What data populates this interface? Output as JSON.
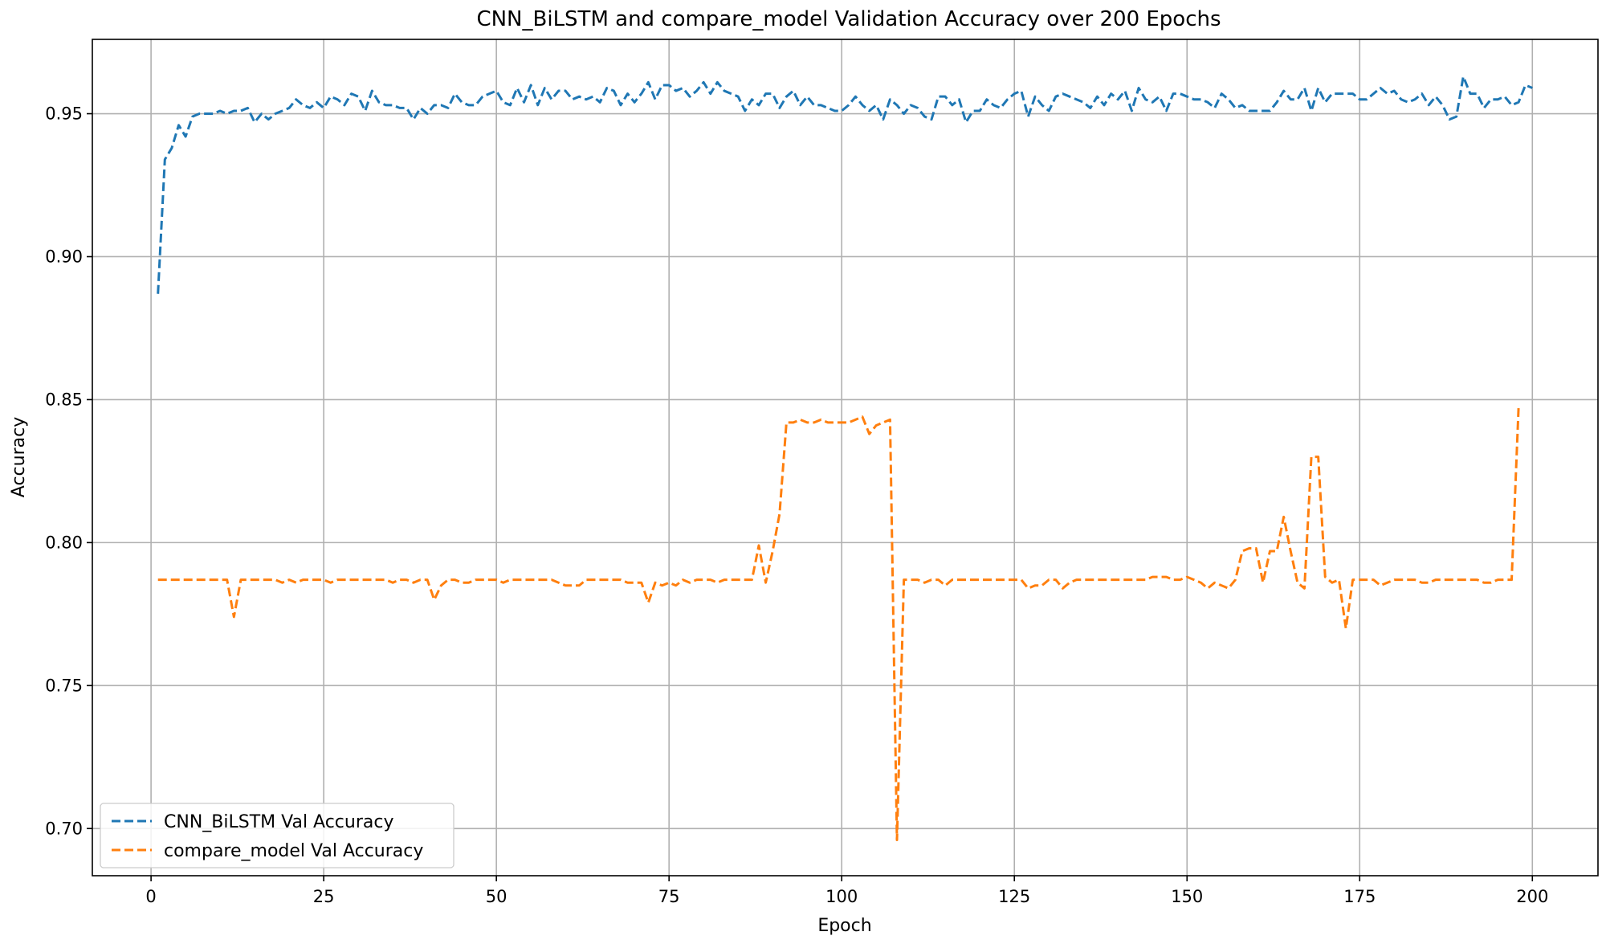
{
  "chart_data": {
    "type": "line",
    "title": "CNN_BiLSTM and compare_model Validation Accuracy over 200 Epochs",
    "xlabel": "Epoch",
    "ylabel": "Accuracy",
    "xlim": [
      -8.5,
      209.5
    ],
    "ylim": [
      0.6835,
      0.976
    ],
    "xticks": [
      0,
      25,
      50,
      75,
      100,
      125,
      150,
      175,
      200
    ],
    "xtick_labels": [
      "0",
      "25",
      "50",
      "75",
      "100",
      "125",
      "150",
      "175",
      "200"
    ],
    "yticks": [
      0.7,
      0.75,
      0.8,
      0.85,
      0.9,
      0.95
    ],
    "ytick_labels": [
      "0.70",
      "0.75",
      "0.80",
      "0.85",
      "0.90",
      "0.95"
    ],
    "grid": true,
    "legend_position": "lower-left",
    "series": [
      {
        "name": "CNN_BiLSTM Val Accuracy",
        "color": "#1f77b4",
        "linestyle": "dashed",
        "x_start": 1,
        "values": [
          0.887,
          0.934,
          0.938,
          0.946,
          0.942,
          0.949,
          0.95,
          0.95,
          0.95,
          0.951,
          0.95,
          0.951,
          0.951,
          0.952,
          0.947,
          0.95,
          0.948,
          0.95,
          0.951,
          0.952,
          0.955,
          0.953,
          0.952,
          0.954,
          0.952,
          0.956,
          0.955,
          0.953,
          0.957,
          0.956,
          0.951,
          0.958,
          0.954,
          0.953,
          0.953,
          0.952,
          0.952,
          0.948,
          0.952,
          0.95,
          0.953,
          0.953,
          0.952,
          0.957,
          0.954,
          0.953,
          0.953,
          0.956,
          0.957,
          0.958,
          0.954,
          0.953,
          0.959,
          0.954,
          0.96,
          0.953,
          0.959,
          0.955,
          0.958,
          0.958,
          0.955,
          0.956,
          0.955,
          0.956,
          0.954,
          0.959,
          0.958,
          0.953,
          0.957,
          0.954,
          0.957,
          0.961,
          0.955,
          0.96,
          0.96,
          0.958,
          0.959,
          0.956,
          0.958,
          0.961,
          0.957,
          0.961,
          0.958,
          0.957,
          0.956,
          0.951,
          0.955,
          0.953,
          0.957,
          0.957,
          0.952,
          0.956,
          0.958,
          0.953,
          0.956,
          0.953,
          0.953,
          0.952,
          0.951,
          0.951,
          0.953,
          0.956,
          0.953,
          0.951,
          0.953,
          0.948,
          0.955,
          0.953,
          0.95,
          0.953,
          0.952,
          0.949,
          0.948,
          0.956,
          0.956,
          0.953,
          0.955,
          0.947,
          0.951,
          0.951,
          0.955,
          0.953,
          0.952,
          0.955,
          0.957,
          0.958,
          0.949,
          0.956,
          0.953,
          0.951,
          0.956,
          0.957,
          0.956,
          0.955,
          0.954,
          0.952,
          0.956,
          0.953,
          0.957,
          0.955,
          0.958,
          0.951,
          0.959,
          0.955,
          0.954,
          0.956,
          0.951,
          0.957,
          0.957,
          0.956,
          0.955,
          0.955,
          0.954,
          0.952,
          0.957,
          0.955,
          0.952,
          0.953,
          0.951,
          0.951,
          0.951,
          0.951,
          0.954,
          0.958,
          0.955,
          0.955,
          0.959,
          0.951,
          0.959,
          0.954,
          0.957,
          0.957,
          0.957,
          0.957,
          0.955,
          0.955,
          0.957,
          0.959,
          0.957,
          0.958,
          0.955,
          0.954,
          0.955,
          0.957,
          0.953,
          0.956,
          0.953,
          0.948,
          0.949,
          0.963,
          0.957,
          0.957,
          0.952,
          0.955,
          0.955,
          0.956,
          0.953,
          0.954,
          0.96,
          0.959
        ]
      },
      {
        "name": "compare_model Val Accuracy",
        "color": "#ff7f0e",
        "linestyle": "dashed",
        "x_start": 1,
        "values": [
          0.787,
          0.787,
          0.787,
          0.787,
          0.787,
          0.787,
          0.787,
          0.787,
          0.787,
          0.787,
          0.787,
          0.774,
          0.787,
          0.787,
          0.787,
          0.787,
          0.787,
          0.787,
          0.786,
          0.787,
          0.786,
          0.787,
          0.787,
          0.787,
          0.787,
          0.786,
          0.787,
          0.787,
          0.787,
          0.787,
          0.787,
          0.787,
          0.787,
          0.787,
          0.786,
          0.787,
          0.787,
          0.786,
          0.787,
          0.787,
          0.78,
          0.785,
          0.787,
          0.787,
          0.786,
          0.786,
          0.787,
          0.787,
          0.787,
          0.787,
          0.786,
          0.787,
          0.787,
          0.787,
          0.787,
          0.787,
          0.787,
          0.787,
          0.786,
          0.785,
          0.785,
          0.785,
          0.787,
          0.787,
          0.787,
          0.787,
          0.787,
          0.787,
          0.786,
          0.786,
          0.786,
          0.779,
          0.786,
          0.785,
          0.786,
          0.785,
          0.787,
          0.786,
          0.787,
          0.787,
          0.787,
          0.786,
          0.787,
          0.787,
          0.787,
          0.787,
          0.787,
          0.799,
          0.786,
          0.797,
          0.81,
          0.842,
          0.842,
          0.843,
          0.842,
          0.842,
          0.843,
          0.842,
          0.842,
          0.842,
          0.842,
          0.843,
          0.844,
          0.838,
          0.841,
          0.842,
          0.843,
          0.696,
          0.787,
          0.787,
          0.787,
          0.786,
          0.787,
          0.787,
          0.785,
          0.787,
          0.787,
          0.787,
          0.787,
          0.787,
          0.787,
          0.787,
          0.787,
          0.787,
          0.787,
          0.787,
          0.784,
          0.785,
          0.785,
          0.787,
          0.787,
          0.784,
          0.786,
          0.787,
          0.787,
          0.787,
          0.787,
          0.787,
          0.787,
          0.787,
          0.787,
          0.787,
          0.787,
          0.787,
          0.788,
          0.788,
          0.788,
          0.787,
          0.787,
          0.788,
          0.787,
          0.786,
          0.784,
          0.786,
          0.785,
          0.784,
          0.787,
          0.797,
          0.798,
          0.798,
          0.786,
          0.797,
          0.797,
          0.809,
          0.797,
          0.786,
          0.784,
          0.83,
          0.83,
          0.788,
          0.786,
          0.787,
          0.77,
          0.787,
          0.787,
          0.787,
          0.787,
          0.785,
          0.786,
          0.787,
          0.787,
          0.787,
          0.787,
          0.786,
          0.786,
          0.787,
          0.787,
          0.787,
          0.787,
          0.787,
          0.787,
          0.787,
          0.786,
          0.786,
          0.787,
          0.787,
          0.787,
          0.847
        ]
      }
    ]
  }
}
